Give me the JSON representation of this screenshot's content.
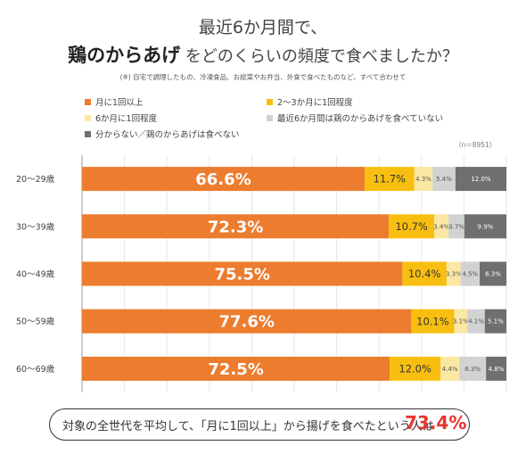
{
  "title": {
    "line1": "最近6か月間で、",
    "line2_em": "鶏のからあげ",
    "line2_rest": "をどのくらいの頻度で食べましたか？",
    "note": "(※) 自宅で調理したもの、冷凍食品、お総菜やお弁当、外食で食べたものなど、すべて合わせて"
  },
  "sample_size": "（n＝8951）",
  "footer": {
    "text": "対象の全世代を平均して、「月に1回以上」から揚げを食べたという人は",
    "value": "73.4%"
  },
  "chart_data": {
    "type": "bar",
    "orientation": "horizontal",
    "stacked": true,
    "categories": [
      "20～29歳",
      "30～39歳",
      "40～49歳",
      "50～59歳",
      "60～69歳"
    ],
    "series": [
      {
        "name": "月に1回以上",
        "color": "#ec7c2e",
        "values": [
          66.6,
          72.3,
          75.5,
          77.6,
          72.5
        ]
      },
      {
        "name": "2～3か月に1回程度",
        "color": "#f8bf10",
        "values": [
          11.7,
          10.7,
          10.4,
          10.1,
          12.0
        ]
      },
      {
        "name": "6か月に1回程度",
        "color": "#fbe7a4",
        "values": [
          4.3,
          3.4,
          3.3,
          3.1,
          4.4
        ]
      },
      {
        "name": "最近6か月間は鶏のからあげを食べていない",
        "color": "#d2d2d2",
        "values": [
          5.4,
          3.7,
          4.5,
          4.1,
          6.3
        ]
      },
      {
        "name": "分からない／鶏のからあげは食べない",
        "color": "#6f6f6f",
        "values": [
          12.0,
          9.9,
          6.3,
          5.1,
          4.8
        ]
      }
    ],
    "xlim": [
      0,
      100
    ],
    "legend_position": "top",
    "grid": true
  }
}
